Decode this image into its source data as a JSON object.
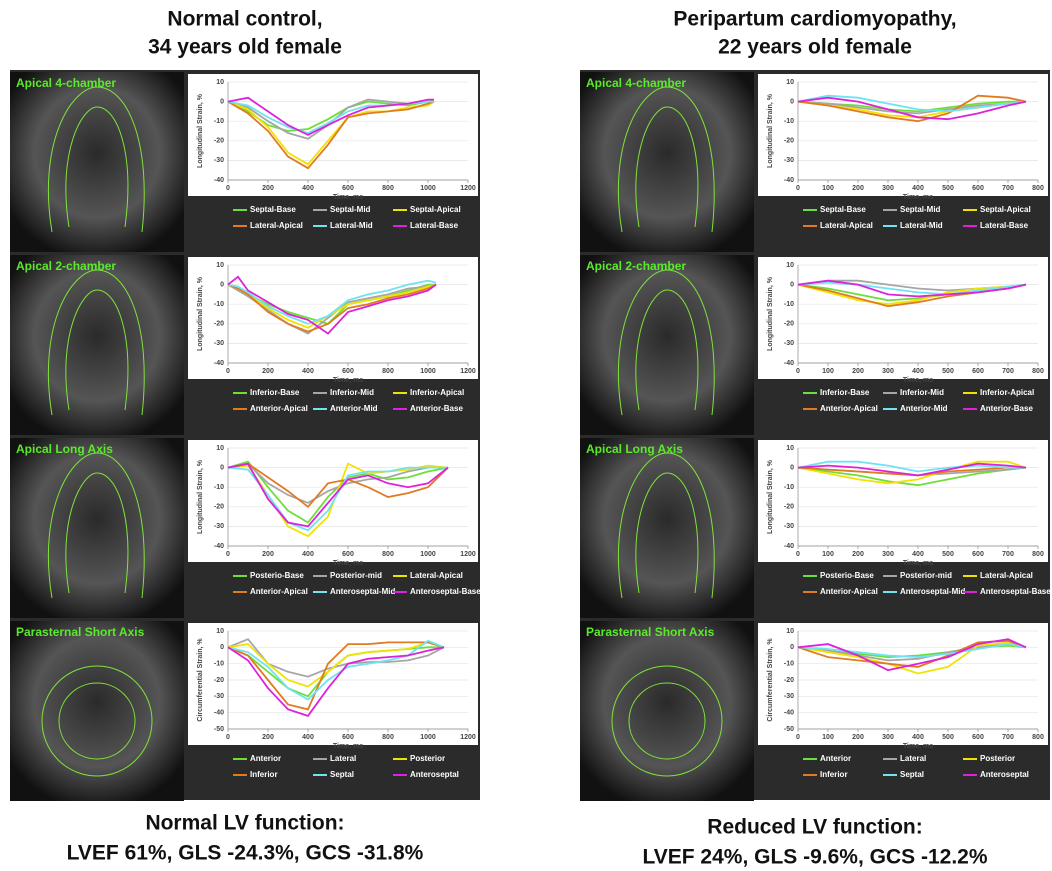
{
  "headings": [
    [
      "Normal control,",
      "34 years old female"
    ],
    [
      "Peripartum cardiomyopathy,",
      "22 years old female"
    ]
  ],
  "conclusions": [
    [
      "Normal LV function:",
      "LVEF 61%, GLS -24.3%, GCS -31.8%"
    ],
    [
      "Reduced LV function:",
      "LVEF 24%, GLS -9.6%, GCS -12.2%"
    ]
  ],
  "view_labels": [
    "Apical 4-chamber",
    "Apical 2-chamber",
    "Apical Long Axis",
    "Parasternal Short Axis"
  ],
  "chart_data": [
    {
      "type": "line",
      "xlabel": "Time, ms",
      "ylabel": "Longitudinal Strain, %",
      "xlim": [
        0,
        1200
      ],
      "xticks": [
        0,
        200,
        400,
        600,
        800,
        1000,
        1200
      ],
      "ylim": [
        -40,
        10
      ],
      "yticks": [
        -40,
        -30,
        -20,
        -10,
        0,
        10
      ],
      "x": [
        0,
        100,
        200,
        300,
        400,
        500,
        600,
        700,
        800,
        900,
        1000,
        1030
      ],
      "series": [
        {
          "name": "Septal-Base",
          "color": "#6ede3a",
          "values": [
            0,
            -5,
            -12,
            -15,
            -14,
            -9,
            -3,
            0,
            -1,
            -2,
            0,
            1
          ]
        },
        {
          "name": "Septal-Mid",
          "color": "#a6a6a6",
          "values": [
            0,
            -3,
            -10,
            -16,
            -19,
            -12,
            -3,
            1,
            0,
            -1,
            0,
            0
          ]
        },
        {
          "name": "Septal-Apical",
          "color": "#f2e200",
          "values": [
            0,
            -4,
            -13,
            -26,
            -32,
            -20,
            -8,
            -5,
            -5,
            -3,
            -2,
            0
          ]
        },
        {
          "name": "Lateral-Apical",
          "color": "#e07b22",
          "values": [
            0,
            -6,
            -15,
            -28,
            -34,
            -22,
            -8,
            -6,
            -5,
            -4,
            -1,
            0
          ]
        },
        {
          "name": "Lateral-Mid",
          "color": "#6fe3f2",
          "values": [
            0,
            -2,
            -8,
            -13,
            -16,
            -11,
            -5,
            -2,
            -2,
            -1,
            0,
            0
          ]
        },
        {
          "name": "Lateral-Base",
          "color": "#dc22dc",
          "values": [
            0,
            2,
            -5,
            -12,
            -17,
            -12,
            -7,
            -3,
            -2,
            -1,
            1,
            1
          ]
        }
      ]
    },
    {
      "type": "line",
      "xlabel": "Time, ms",
      "ylabel": "Longitudinal Strain, %",
      "xlim": [
        0,
        1200
      ],
      "xticks": [
        0,
        200,
        400,
        600,
        800,
        1000,
        1200
      ],
      "ylim": [
        -40,
        10
      ],
      "yticks": [
        -40,
        -30,
        -20,
        -10,
        0,
        10
      ],
      "x": [
        0,
        50,
        100,
        200,
        300,
        400,
        500,
        600,
        700,
        800,
        900,
        1000,
        1040
      ],
      "series": [
        {
          "name": "Inferior-Base",
          "color": "#6ede3a",
          "values": [
            0,
            -2,
            -5,
            -10,
            -14,
            -17,
            -20,
            -10,
            -8,
            -6,
            -3,
            0,
            0
          ]
        },
        {
          "name": "Inferior-Mid",
          "color": "#a6a6a6",
          "values": [
            0,
            -3,
            -6,
            -13,
            -20,
            -25,
            -17,
            -9,
            -7,
            -5,
            -2,
            -1,
            0
          ]
        },
        {
          "name": "Inferior-Apical",
          "color": "#f2e200",
          "values": [
            0,
            -2,
            -5,
            -12,
            -18,
            -22,
            -16,
            -10,
            -8,
            -6,
            -4,
            -1,
            0
          ]
        },
        {
          "name": "Anterior-Apical",
          "color": "#e07b22",
          "values": [
            0,
            -2,
            -5,
            -14,
            -20,
            -24,
            -20,
            -12,
            -10,
            -7,
            -5,
            -2,
            0
          ]
        },
        {
          "name": "Anterior-Mid",
          "color": "#6fe3f2",
          "values": [
            0,
            -1,
            -4,
            -11,
            -16,
            -20,
            -16,
            -8,
            -5,
            -3,
            0,
            2,
            1
          ]
        },
        {
          "name": "Anterior-Base",
          "color": "#dc22dc",
          "values": [
            0,
            4,
            -3,
            -9,
            -15,
            -18,
            -25,
            -14,
            -11,
            -8,
            -6,
            -3,
            0
          ]
        }
      ]
    },
    {
      "type": "line",
      "xlabel": "Time, ms",
      "ylabel": "Longitudinal Strain, %",
      "xlim": [
        0,
        1200
      ],
      "xticks": [
        0,
        200,
        400,
        600,
        800,
        1000,
        1200
      ],
      "ylim": [
        -40,
        10
      ],
      "yticks": [
        -40,
        -30,
        -20,
        -10,
        0,
        10
      ],
      "x": [
        0,
        100,
        200,
        300,
        400,
        500,
        600,
        700,
        800,
        900,
        1000,
        1100
      ],
      "series": [
        {
          "name": "Posterio-Base",
          "color": "#6ede3a",
          "values": [
            0,
            3,
            -10,
            -22,
            -28,
            -15,
            -5,
            -3,
            -6,
            -5,
            -2,
            0
          ]
        },
        {
          "name": "Posterior-mid",
          "color": "#a6a6a6",
          "values": [
            0,
            2,
            -8,
            -14,
            -18,
            -12,
            -8,
            -6,
            -5,
            -2,
            0,
            0
          ]
        },
        {
          "name": "Lateral-Apical",
          "color": "#f2e200",
          "values": [
            0,
            1,
            -14,
            -30,
            -35,
            -25,
            2,
            -3,
            -2,
            -1,
            1,
            0
          ]
        },
        {
          "name": "Anterior-Apical",
          "color": "#e07b22",
          "values": [
            0,
            2,
            -5,
            -12,
            -20,
            -8,
            -6,
            -10,
            -15,
            -13,
            -10,
            0
          ]
        },
        {
          "name": "Anteroseptal-Mid",
          "color": "#6fe3f2",
          "values": [
            0,
            -1,
            -14,
            -28,
            -32,
            -22,
            -4,
            -2,
            -2,
            0,
            0,
            0
          ]
        },
        {
          "name": "Anteroseptal-Base",
          "color": "#dc22dc",
          "values": [
            0,
            2,
            -16,
            -28,
            -30,
            -18,
            -6,
            -4,
            -8,
            -10,
            -8,
            0
          ]
        }
      ]
    },
    {
      "type": "line",
      "xlabel": "Time, ms",
      "ylabel": "Circumferential Strain, %",
      "xlim": [
        0,
        1200
      ],
      "xticks": [
        0,
        200,
        400,
        600,
        800,
        1000,
        1200
      ],
      "ylim": [
        -50,
        10
      ],
      "yticks": [
        -50,
        -40,
        -30,
        -20,
        -10,
        0,
        10
      ],
      "x": [
        0,
        100,
        200,
        300,
        400,
        500,
        600,
        700,
        800,
        900,
        1000,
        1080
      ],
      "series": [
        {
          "name": "Anterior",
          "color": "#6ede3a",
          "values": [
            0,
            -5,
            -15,
            -25,
            -30,
            -15,
            -5,
            -3,
            -2,
            -1,
            0,
            0
          ]
        },
        {
          "name": "Lateral",
          "color": "#a6a6a6",
          "values": [
            0,
            5,
            -10,
            -15,
            -18,
            -13,
            -10,
            -9,
            -9,
            -8,
            -5,
            0
          ]
        },
        {
          "name": "Posterior",
          "color": "#f2e200",
          "values": [
            0,
            2,
            -10,
            -20,
            -24,
            -15,
            -5,
            -3,
            -2,
            -1,
            3,
            0
          ]
        },
        {
          "name": "Inferior",
          "color": "#e07b22",
          "values": [
            0,
            -5,
            -20,
            -35,
            -38,
            -10,
            2,
            2,
            3,
            3,
            3,
            0
          ]
        },
        {
          "name": "Septal",
          "color": "#6fe3f2",
          "values": [
            0,
            -3,
            -12,
            -25,
            -32,
            -20,
            -12,
            -10,
            -8,
            -5,
            4,
            0
          ]
        },
        {
          "name": "Anteroseptal",
          "color": "#dc22dc",
          "values": [
            0,
            -8,
            -25,
            -38,
            -42,
            -25,
            -10,
            -7,
            -6,
            -5,
            -2,
            0
          ]
        }
      ]
    },
    {
      "type": "line",
      "xlabel": "Time, ms",
      "ylabel": "Longitudinal Strain, %",
      "xlim": [
        0,
        800
      ],
      "xticks": [
        0,
        100,
        200,
        300,
        400,
        500,
        600,
        700,
        800
      ],
      "ylim": [
        -40,
        10
      ],
      "yticks": [
        -40,
        -30,
        -20,
        -10,
        0,
        10
      ],
      "x": [
        0,
        100,
        200,
        300,
        400,
        500,
        600,
        700,
        760
      ],
      "series": [
        {
          "name": "Septal-Base",
          "color": "#6ede3a",
          "values": [
            0,
            -1,
            -2,
            -4,
            -5,
            -3,
            -1,
            0,
            0
          ]
        },
        {
          "name": "Septal-Mid",
          "color": "#a6a6a6",
          "values": [
            0,
            -1,
            -3,
            -5,
            -6,
            -4,
            -2,
            -1,
            0
          ]
        },
        {
          "name": "Septal-Apical",
          "color": "#f2e200",
          "values": [
            0,
            -2,
            -4,
            -7,
            -8,
            -5,
            -3,
            -1,
            0
          ]
        },
        {
          "name": "Lateral-Apical",
          "color": "#e07b22",
          "values": [
            0,
            -2,
            -5,
            -8,
            -10,
            -6,
            3,
            2,
            0
          ]
        },
        {
          "name": "Lateral-Mid",
          "color": "#6fe3f2",
          "values": [
            0,
            3,
            2,
            -1,
            -4,
            -5,
            -3,
            -1,
            0
          ]
        },
        {
          "name": "Lateral-Base",
          "color": "#dc22dc",
          "values": [
            0,
            2,
            0,
            -4,
            -8,
            -9,
            -6,
            -2,
            0
          ]
        }
      ]
    },
    {
      "type": "line",
      "xlabel": "Time, ms",
      "ylabel": "Longitudinal Strain, %",
      "xlim": [
        0,
        800
      ],
      "xticks": [
        0,
        100,
        200,
        300,
        400,
        500,
        600,
        700,
        800
      ],
      "ylim": [
        -40,
        10
      ],
      "yticks": [
        -40,
        -30,
        -20,
        -10,
        0,
        10
      ],
      "x": [
        0,
        100,
        200,
        300,
        400,
        500,
        600,
        700,
        760
      ],
      "series": [
        {
          "name": "Inferior-Base",
          "color": "#6ede3a",
          "values": [
            0,
            -2,
            -5,
            -8,
            -7,
            -5,
            -3,
            -1,
            0
          ]
        },
        {
          "name": "Inferior-Mid",
          "color": "#a6a6a6",
          "values": [
            0,
            2,
            2,
            0,
            -2,
            -3,
            -2,
            -1,
            0
          ]
        },
        {
          "name": "Inferior-Apical",
          "color": "#f2e200",
          "values": [
            0,
            -4,
            -8,
            -10,
            -8,
            -4,
            -2,
            -1,
            0
          ]
        },
        {
          "name": "Anterior-Apical",
          "color": "#e07b22",
          "values": [
            0,
            -3,
            -7,
            -11,
            -9,
            -6,
            -4,
            -2,
            0
          ]
        },
        {
          "name": "Anterior-Mid",
          "color": "#6fe3f2",
          "values": [
            0,
            1,
            0,
            -2,
            -4,
            -5,
            -3,
            -1,
            0
          ]
        },
        {
          "name": "Anterior-Base",
          "color": "#dc22dc",
          "values": [
            0,
            2,
            0,
            -5,
            -6,
            -5,
            -4,
            -2,
            0
          ]
        }
      ]
    },
    {
      "type": "line",
      "xlabel": "Time, ms",
      "ylabel": "Longitudinal Strain, %",
      "xlim": [
        0,
        800
      ],
      "xticks": [
        0,
        100,
        200,
        300,
        400,
        500,
        600,
        700,
        800
      ],
      "ylim": [
        -40,
        10
      ],
      "yticks": [
        -40,
        -30,
        -20,
        -10,
        0,
        10
      ],
      "x": [
        0,
        100,
        200,
        300,
        400,
        500,
        600,
        700,
        760
      ],
      "series": [
        {
          "name": "Posterio-Base",
          "color": "#6ede3a",
          "values": [
            0,
            -2,
            -4,
            -7,
            -9,
            -6,
            -3,
            -1,
            0
          ]
        },
        {
          "name": "Posterior-mid",
          "color": "#a6a6a6",
          "values": [
            0,
            -1,
            -2,
            -3,
            -4,
            -3,
            -2,
            -1,
            0
          ]
        },
        {
          "name": "Lateral-Apical",
          "color": "#f2e200",
          "values": [
            0,
            -3,
            -6,
            -8,
            -6,
            -1,
            3,
            3,
            0
          ]
        },
        {
          "name": "Anterior-Apical",
          "color": "#e07b22",
          "values": [
            0,
            -1,
            -2,
            -3,
            -4,
            -2,
            -1,
            0,
            0
          ]
        },
        {
          "name": "Anteroseptal-Mid",
          "color": "#6fe3f2",
          "values": [
            0,
            3,
            3,
            1,
            -2,
            0,
            1,
            0,
            0
          ]
        },
        {
          "name": "Anteroseptal-Base",
          "color": "#dc22dc",
          "values": [
            0,
            1,
            0,
            -2,
            -4,
            -1,
            2,
            1,
            0
          ]
        }
      ]
    },
    {
      "type": "line",
      "xlabel": "Time, ms",
      "ylabel": "Circumferential Strain, %",
      "xlim": [
        0,
        800
      ],
      "xticks": [
        0,
        100,
        200,
        300,
        400,
        500,
        600,
        700,
        800
      ],
      "ylim": [
        -50,
        10
      ],
      "yticks": [
        -50,
        -40,
        -30,
        -20,
        -10,
        0,
        10
      ],
      "x": [
        0,
        100,
        200,
        300,
        400,
        500,
        600,
        700,
        760
      ],
      "series": [
        {
          "name": "Anterior",
          "color": "#6ede3a",
          "values": [
            0,
            -2,
            -4,
            -6,
            -5,
            -3,
            0,
            1,
            0
          ]
        },
        {
          "name": "Lateral",
          "color": "#a6a6a6",
          "values": [
            0,
            -2,
            -5,
            -8,
            -7,
            -3,
            0,
            2,
            0
          ]
        },
        {
          "name": "Posterior",
          "color": "#f2e200",
          "values": [
            0,
            -3,
            -6,
            -10,
            -16,
            -12,
            1,
            3,
            0
          ]
        },
        {
          "name": "Inferior",
          "color": "#e07b22",
          "values": [
            0,
            -6,
            -8,
            -10,
            -12,
            -5,
            3,
            4,
            0
          ]
        },
        {
          "name": "Septal",
          "color": "#6fe3f2",
          "values": [
            0,
            -1,
            -3,
            -5,
            -6,
            -4,
            -1,
            2,
            0
          ]
        },
        {
          "name": "Anteroseptal",
          "color": "#dc22dc",
          "values": [
            0,
            2,
            -5,
            -14,
            -10,
            -6,
            2,
            5,
            0
          ]
        }
      ]
    }
  ]
}
